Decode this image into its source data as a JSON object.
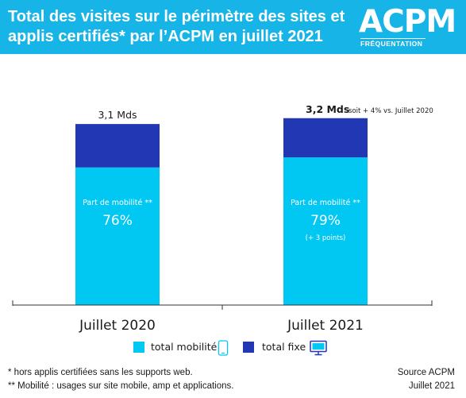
{
  "header": {
    "title_line1": "Total des visites sur le périmètre des sites et",
    "title_line2": "applis certifiés* par l’ACPM en juillet 2021",
    "logo_text": "ACPM",
    "logo_subtext": "FRÉQUENTATION"
  },
  "chart_data": {
    "type": "bar",
    "stacked": true,
    "categories": [
      "Juillet 2020",
      "Juillet 2021"
    ],
    "totals": [
      3.1,
      3.2
    ],
    "total_labels": [
      "3,1 Mds",
      "3,2 Mds"
    ],
    "total_annotation": [
      "",
      "soit + 4% vs. Juillet 2020"
    ],
    "series": [
      {
        "name": "total mobilité",
        "share_percent": [
          76,
          79
        ],
        "color": "#00c8f2"
      },
      {
        "name": "total fixe",
        "share_percent": [
          24,
          21
        ],
        "color": "#2137b3"
      }
    ],
    "bar_annotations": [
      {
        "label": "Part de mobilité **",
        "value": "76%",
        "note": ""
      },
      {
        "label": "Part de mobilité **",
        "value": "79%",
        "note": "(+ 3 points)"
      }
    ],
    "ylim": [
      0,
      3.7
    ]
  },
  "legend": {
    "mobile_label": "total mobilité",
    "mobile_icon": "smartphone-icon",
    "fixe_label": "total fixe",
    "fixe_icon": "desktop-monitor-icon"
  },
  "footnotes": {
    "note1": "* hors applis certifiées sans les supports web.",
    "note2": "** Mobilité : usages sur site mobile, amp et applications.",
    "source_line1": "Source ACPM",
    "source_line2": "Juillet 2021"
  }
}
